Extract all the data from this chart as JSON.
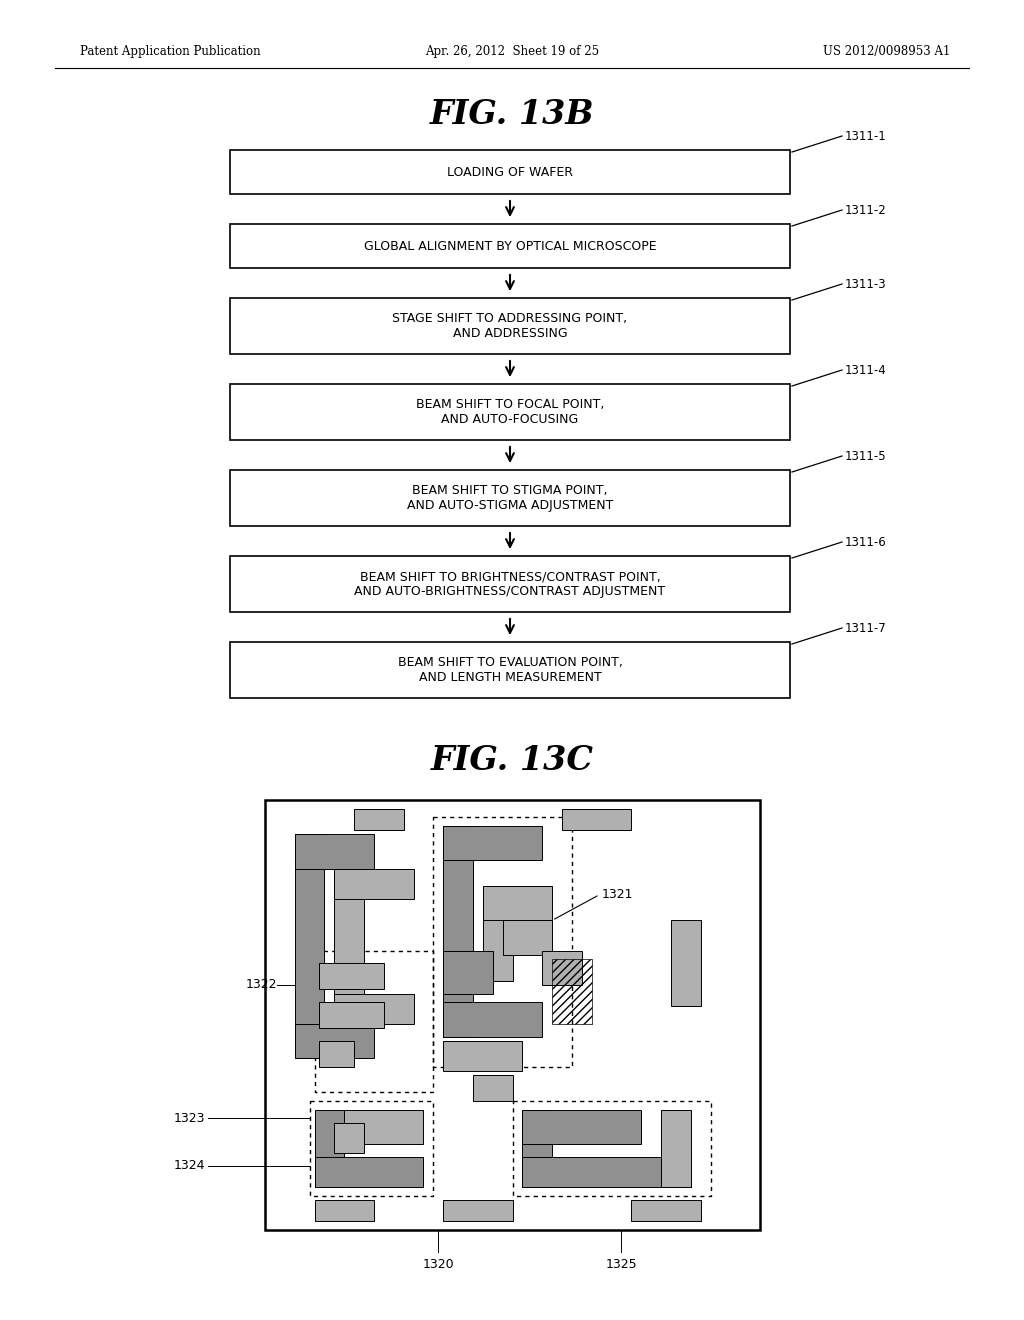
{
  "header_left": "Patent Application Publication",
  "header_center": "Apr. 26, 2012  Sheet 19 of 25",
  "header_right": "US 2012/0098953 A1",
  "fig13b_title": "FIG. 13B",
  "fig13c_title": "FIG. 13C",
  "flowchart_boxes": [
    {
      "label": "LOADING OF WAFER",
      "ref": "1311-1"
    },
    {
      "label": "GLOBAL ALIGNMENT BY OPTICAL MICROSCOPE",
      "ref": "1311-2"
    },
    {
      "label": "STAGE SHIFT TO ADDRESSING POINT,\nAND ADDRESSING",
      "ref": "1311-3"
    },
    {
      "label": "BEAM SHIFT TO FOCAL POINT,\nAND AUTO-FOCUSING",
      "ref": "1311-4"
    },
    {
      "label": "BEAM SHIFT TO STIGMA POINT,\nAND AUTO-STIGMA ADJUSTMENT",
      "ref": "1311-5"
    },
    {
      "label": "BEAM SHIFT TO BRIGHTNESS/CONTRAST POINT,\nAND AUTO-BRIGHTNESS/CONTRAST ADJUSTMENT",
      "ref": "1311-6"
    },
    {
      "label": "BEAM SHIFT TO EVALUATION POINT,\nAND LENGTH MEASUREMENT",
      "ref": "1311-7"
    }
  ],
  "bg_color": "#ffffff"
}
